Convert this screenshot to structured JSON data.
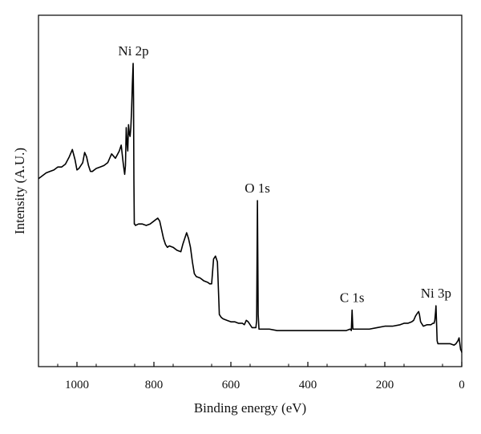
{
  "chart_data": {
    "type": "line",
    "xlabel": "Binding energy (eV)",
    "ylabel": "Intensity (A.U.)",
    "xlim": [
      1100,
      0
    ],
    "x_reversed": true,
    "ylim": [
      0,
      100
    ],
    "y_ticks_shown": false,
    "xticks": [
      1000,
      800,
      600,
      400,
      200,
      0
    ],
    "grid": false,
    "annotations": [
      {
        "text": "Ni 2p",
        "x": 853,
        "y": 100
      },
      {
        "text": "O 1s",
        "x": 531,
        "y": 53
      },
      {
        "text": "C 1s",
        "x": 285,
        "y": 15.5
      },
      {
        "text": "Ni 3p",
        "x": 67,
        "y": 17
      }
    ],
    "series": [
      {
        "color": "#000000",
        "x": [
          1100,
          1090,
          1080,
          1070,
          1060,
          1050,
          1040,
          1030,
          1020,
          1012,
          1005,
          1000,
          995,
          990,
          985,
          980,
          975,
          970,
          965,
          960,
          950,
          940,
          930,
          920,
          910,
          900,
          890,
          885,
          880,
          876,
          874,
          872,
          870,
          868,
          866,
          864,
          862,
          860,
          858,
          856,
          854,
          853,
          852,
          851,
          850,
          848,
          840,
          830,
          820,
          810,
          800,
          790,
          785,
          780,
          775,
          770,
          765,
          760,
          750,
          740,
          730,
          725,
          720,
          715,
          710,
          705,
          700,
          695,
          690,
          680,
          670,
          660,
          655,
          650,
          645,
          640,
          635,
          630,
          625,
          620,
          610,
          600,
          590,
          580,
          570,
          565,
          560,
          555,
          550,
          545,
          540,
          535,
          533,
          531,
          529,
          527,
          525,
          520,
          500,
          480,
          460,
          440,
          420,
          400,
          380,
          360,
          340,
          320,
          300,
          290,
          287,
          285,
          283,
          281,
          275,
          260,
          240,
          220,
          200,
          180,
          160,
          150,
          140,
          130,
          125,
          120,
          115,
          112,
          110,
          107,
          100,
          90,
          80,
          75,
          72,
          70,
          68,
          67,
          66,
          64,
          62,
          60,
          50,
          40,
          30,
          20,
          15,
          10,
          7,
          5,
          3,
          1,
          0
        ],
        "y": [
          60.5,
          61.5,
          62.5,
          63,
          63.5,
          64.5,
          64.5,
          65.5,
          68,
          70.5,
          67,
          63.5,
          64,
          65,
          66,
          69.5,
          68,
          65,
          63,
          63,
          64,
          64.5,
          65,
          66,
          69,
          67.5,
          70,
          72,
          66,
          62,
          65,
          78,
          73,
          70,
          79,
          76,
          75,
          78,
          84,
          93,
          100,
          88,
          60,
          45,
          45,
          44.5,
          45,
          45,
          44.5,
          45,
          46,
          47,
          46,
          43,
          40,
          38,
          37,
          37.5,
          37,
          36,
          35.5,
          38,
          40,
          42,
          40,
          37,
          32,
          28,
          27,
          26.5,
          25.5,
          25,
          24.5,
          24.5,
          33,
          34,
          32,
          14,
          13,
          12.5,
          12,
          11.5,
          11.5,
          11,
          11,
          10.5,
          12,
          11.5,
          10.5,
          9.5,
          9.5,
          9.5,
          12,
          53,
          14,
          9,
          9,
          9,
          9,
          8.5,
          8.5,
          8.5,
          8.5,
          8.5,
          8.5,
          8.5,
          8.5,
          8.5,
          8.5,
          9,
          8.5,
          15.5,
          9,
          9,
          9,
          9,
          9,
          9.5,
          10,
          10,
          10.5,
          11,
          11,
          11.5,
          12,
          13.5,
          14.5,
          15,
          14,
          11.5,
          10,
          10.5,
          10.5,
          11,
          11,
          12,
          15,
          17,
          13,
          5,
          4,
          4,
          4,
          4,
          4,
          3.5,
          4,
          5,
          6,
          4,
          2,
          1.5,
          1
        ]
      }
    ]
  }
}
